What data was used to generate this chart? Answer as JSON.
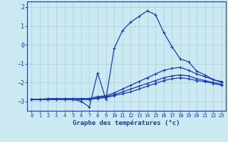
{
  "xlabel": "Graphe des températures (°c)",
  "xlim": [
    -0.5,
    23.5
  ],
  "ylim": [
    -3.5,
    2.3
  ],
  "yticks": [
    -3,
    -2,
    -1,
    0,
    1,
    2
  ],
  "xticks": [
    0,
    1,
    2,
    3,
    4,
    5,
    6,
    7,
    8,
    9,
    10,
    11,
    12,
    13,
    14,
    15,
    16,
    17,
    18,
    19,
    20,
    21,
    22,
    23
  ],
  "bg_color": "#cce8f0",
  "grid_color": "#aacfdc",
  "line_color": "#1a3ab0",
  "line1_y": [
    -2.9,
    -2.9,
    -2.9,
    -2.9,
    -2.9,
    -2.9,
    -3.0,
    -3.3,
    -1.5,
    -2.9,
    -0.2,
    0.75,
    1.2,
    1.5,
    1.8,
    1.6,
    0.65,
    -0.1,
    -0.75,
    -0.9,
    -1.4,
    -1.6,
    -1.85,
    -2.0
  ],
  "line2_y": [
    -2.9,
    -2.9,
    -2.85,
    -2.85,
    -2.85,
    -2.85,
    -2.85,
    -2.85,
    -2.75,
    -2.7,
    -2.55,
    -2.35,
    -2.15,
    -1.95,
    -1.75,
    -1.55,
    -1.35,
    -1.25,
    -1.2,
    -1.35,
    -1.55,
    -1.7,
    -1.85,
    -1.95
  ],
  "line3_y": [
    -2.9,
    -2.9,
    -2.9,
    -2.9,
    -2.9,
    -2.9,
    -2.9,
    -2.9,
    -2.8,
    -2.75,
    -2.65,
    -2.5,
    -2.35,
    -2.2,
    -2.05,
    -1.9,
    -1.75,
    -1.65,
    -1.6,
    -1.65,
    -1.8,
    -1.9,
    -2.0,
    -2.1
  ],
  "line4_y": [
    -2.9,
    -2.9,
    -2.9,
    -2.9,
    -2.9,
    -2.9,
    -2.9,
    -2.9,
    -2.85,
    -2.8,
    -2.7,
    -2.6,
    -2.5,
    -2.35,
    -2.2,
    -2.05,
    -1.9,
    -1.8,
    -1.75,
    -1.8,
    -1.9,
    -1.95,
    -2.05,
    -2.15
  ]
}
